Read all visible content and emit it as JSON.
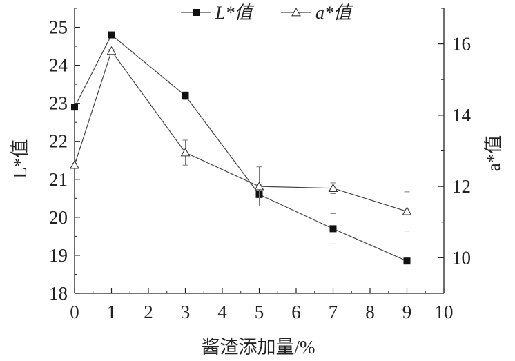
{
  "chart_data": {
    "type": "line",
    "xlabel": "酱渣添加量/%",
    "ylabel_left": "L*值",
    "ylabel_right": "a*值",
    "xlim": [
      0,
      10
    ],
    "ylim_left": [
      18,
      25.5
    ],
    "ylim_right": [
      9,
      17
    ],
    "x_ticks": [
      0,
      1,
      2,
      3,
      4,
      5,
      6,
      7,
      8,
      9,
      10
    ],
    "y_left_ticks": [
      18,
      19,
      20,
      21,
      22,
      23,
      24,
      25
    ],
    "y_right_ticks": [
      10,
      12,
      14,
      16
    ],
    "legend": {
      "position": "top"
    },
    "grid": false,
    "series": [
      {
        "name": "L*值",
        "axis": "left",
        "marker": "filled-square",
        "x": [
          0,
          1,
          3,
          5,
          7,
          9
        ],
        "values": [
          22.9,
          24.8,
          23.2,
          20.6,
          19.7,
          18.85
        ],
        "errors": [
          0.05,
          0.05,
          0.1,
          0.25,
          0.4,
          0.05
        ]
      },
      {
        "name": "a*值",
        "axis": "right",
        "marker": "open-triangle",
        "x": [
          0,
          1,
          3,
          5,
          7,
          9
        ],
        "values": [
          12.6,
          15.8,
          12.95,
          12.0,
          11.95,
          11.3
        ],
        "errors": [
          0.05,
          0.05,
          0.35,
          0.55,
          0.15,
          0.55
        ]
      }
    ]
  }
}
